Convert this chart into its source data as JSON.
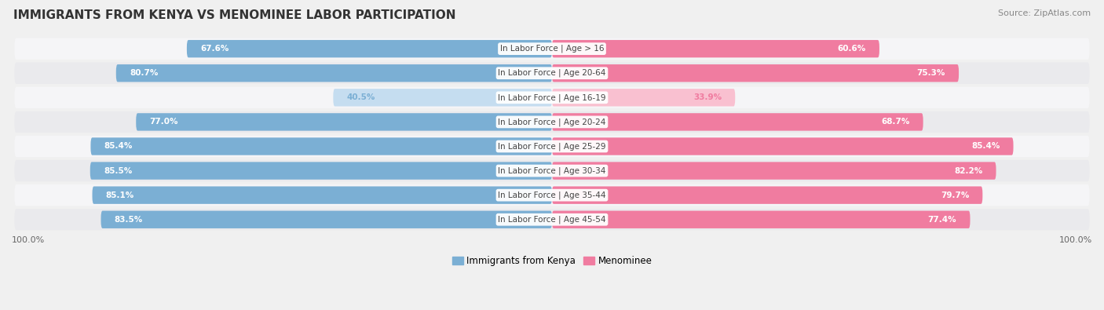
{
  "title": "IMMIGRANTS FROM KENYA VS MENOMINEE LABOR PARTICIPATION",
  "source": "Source: ZipAtlas.com",
  "categories": [
    "In Labor Force | Age > 16",
    "In Labor Force | Age 20-64",
    "In Labor Force | Age 16-19",
    "In Labor Force | Age 20-24",
    "In Labor Force | Age 25-29",
    "In Labor Force | Age 30-34",
    "In Labor Force | Age 35-44",
    "In Labor Force | Age 45-54"
  ],
  "kenya_values": [
    67.6,
    80.7,
    40.5,
    77.0,
    85.4,
    85.5,
    85.1,
    83.5
  ],
  "menominee_values": [
    60.6,
    75.3,
    33.9,
    68.7,
    85.4,
    82.2,
    79.7,
    77.4
  ],
  "kenya_color": "#7bafd4",
  "kenya_color_light": "#c5ddf0",
  "menominee_color": "#f07ca0",
  "menominee_color_light": "#f9c0d0",
  "row_color_odd": "#f5f5f7",
  "row_color_even": "#eaeaed",
  "background_color": "#f0f0f0",
  "max_val": 100.0,
  "legend_kenya": "Immigrants from Kenya",
  "legend_menominee": "Menominee",
  "title_fontsize": 11,
  "source_fontsize": 8,
  "label_fontsize": 7.5,
  "cat_fontsize": 7.5,
  "axis_label_fontsize": 8
}
